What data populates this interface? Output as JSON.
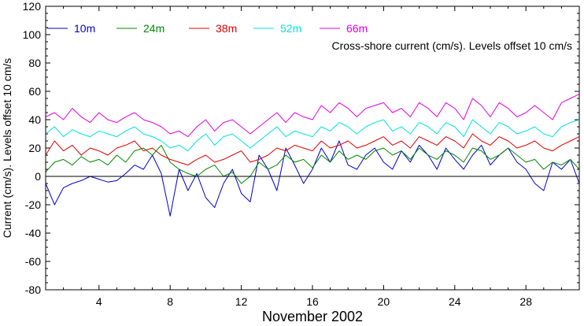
{
  "chart_data": {
    "type": "line",
    "xlabel": "November 2002",
    "ylabel": "Current (cm/s). Levels offset 10 cm/s",
    "annotation": "Cross-shore current (cm/s). Levels offset 10 cm/s",
    "xlim": [
      1,
      31
    ],
    "ylim": [
      -80,
      120
    ],
    "x_ticks": [
      4,
      8,
      12,
      16,
      20,
      24,
      28
    ],
    "y_ticks": [
      -80,
      -60,
      -40,
      -20,
      0,
      20,
      40,
      60,
      80,
      100,
      120
    ],
    "zero_line": true,
    "legend_position": "top",
    "series": [
      {
        "name": "10m",
        "color": "#0000cc",
        "x": [
          1,
          1.5,
          2,
          2.5,
          3,
          3.5,
          4,
          4.5,
          5,
          5.5,
          6,
          6.5,
          7,
          7.5,
          8,
          8.5,
          9,
          9.5,
          10,
          10.5,
          11,
          11.5,
          12,
          12.5,
          13,
          13.5,
          14,
          14.5,
          15,
          15.5,
          16,
          16.5,
          17,
          17.5,
          18,
          18.5,
          19,
          19.5,
          20,
          20.5,
          21,
          21.5,
          22,
          22.5,
          23,
          23.5,
          24,
          24.5,
          25,
          25.5,
          26,
          26.5,
          27,
          27.5,
          28,
          28.5,
          29,
          29.5,
          30,
          30.5,
          31
        ],
        "y": [
          -5,
          -20,
          -8,
          -5,
          -3,
          0,
          -2,
          -4,
          -3,
          2,
          8,
          5,
          15,
          2,
          -28,
          5,
          -10,
          2,
          -15,
          -22,
          -5,
          5,
          -12,
          -18,
          15,
          5,
          -10,
          20,
          8,
          -5,
          5,
          20,
          10,
          25,
          8,
          5,
          15,
          20,
          10,
          5,
          18,
          10,
          22,
          15,
          5,
          20,
          12,
          5,
          15,
          22,
          8,
          15,
          20,
          10,
          5,
          -5,
          -10,
          10,
          5,
          12,
          -5
        ]
      },
      {
        "name": "24m",
        "color": "#008800",
        "x": [
          1,
          1.5,
          2,
          2.5,
          3,
          3.5,
          4,
          4.5,
          5,
          5.5,
          6,
          6.5,
          7,
          7.5,
          8,
          8.5,
          9,
          9.5,
          10,
          10.5,
          11,
          11.5,
          12,
          12.5,
          13,
          13.5,
          14,
          14.5,
          15,
          15.5,
          16,
          16.5,
          17,
          17.5,
          18,
          18.5,
          19,
          19.5,
          20,
          20.5,
          21,
          21.5,
          22,
          22.5,
          23,
          23.5,
          24,
          24.5,
          25,
          25.5,
          26,
          26.5,
          27,
          27.5,
          28,
          28.5,
          29,
          29.5,
          30,
          30.5,
          31
        ],
        "y": [
          3,
          10,
          12,
          8,
          14,
          10,
          12,
          8,
          15,
          10,
          18,
          20,
          15,
          22,
          10,
          5,
          2,
          0,
          5,
          8,
          0,
          3,
          -5,
          0,
          10,
          5,
          8,
          15,
          10,
          12,
          6,
          15,
          10,
          18,
          12,
          15,
          12,
          18,
          20,
          15,
          18,
          12,
          20,
          15,
          12,
          18,
          15,
          10,
          20,
          18,
          12,
          15,
          20,
          15,
          10,
          12,
          5,
          10,
          8,
          12,
          5
        ]
      },
      {
        "name": "38m",
        "color": "#dd0000",
        "x": [
          1,
          1.5,
          2,
          2.5,
          3,
          3.5,
          4,
          4.5,
          5,
          5.5,
          6,
          6.5,
          7,
          7.5,
          8,
          8.5,
          9,
          9.5,
          10,
          10.5,
          11,
          11.5,
          12,
          12.5,
          13,
          13.5,
          14,
          14.5,
          15,
          15.5,
          16,
          16.5,
          17,
          17.5,
          18,
          18.5,
          19,
          19.5,
          20,
          20.5,
          21,
          21.5,
          22,
          22.5,
          23,
          23.5,
          24,
          24.5,
          25,
          25.5,
          26,
          26.5,
          27,
          27.5,
          28,
          28.5,
          29,
          29.5,
          30,
          30.5,
          31
        ],
        "y": [
          15,
          25,
          18,
          22,
          15,
          20,
          18,
          15,
          20,
          22,
          25,
          18,
          20,
          15,
          12,
          10,
          8,
          12,
          15,
          10,
          12,
          15,
          18,
          10,
          12,
          15,
          20,
          18,
          22,
          20,
          18,
          25,
          20,
          22,
          25,
          20,
          22,
          25,
          28,
          22,
          25,
          20,
          28,
          25,
          22,
          28,
          25,
          20,
          30,
          25,
          22,
          28,
          25,
          20,
          22,
          25,
          20,
          18,
          22,
          25,
          28
        ]
      },
      {
        "name": "52m",
        "color": "#00e0e0",
        "x": [
          1,
          1.5,
          2,
          2.5,
          3,
          3.5,
          4,
          4.5,
          5,
          5.5,
          6,
          6.5,
          7,
          7.5,
          8,
          8.5,
          9,
          9.5,
          10,
          10.5,
          11,
          11.5,
          12,
          12.5,
          13,
          13.5,
          14,
          14.5,
          15,
          15.5,
          16,
          16.5,
          17,
          17.5,
          18,
          18.5,
          19,
          19.5,
          20,
          20.5,
          21,
          21.5,
          22,
          22.5,
          23,
          23.5,
          24,
          24.5,
          25,
          25.5,
          26,
          26.5,
          27,
          27.5,
          28,
          28.5,
          29,
          29.5,
          30,
          30.5,
          31
        ],
        "y": [
          30,
          35,
          28,
          33,
          30,
          28,
          32,
          30,
          28,
          32,
          35,
          30,
          28,
          25,
          20,
          22,
          18,
          25,
          30,
          22,
          28,
          30,
          25,
          20,
          25,
          30,
          35,
          28,
          32,
          30,
          28,
          35,
          32,
          38,
          35,
          30,
          35,
          38,
          40,
          32,
          35,
          30,
          38,
          35,
          30,
          38,
          35,
          28,
          40,
          35,
          30,
          38,
          35,
          30,
          32,
          35,
          30,
          28,
          35,
          38,
          40
        ]
      },
      {
        "name": "66m",
        "color": "#e000e0",
        "x": [
          1,
          1.5,
          2,
          2.5,
          3,
          3.5,
          4,
          4.5,
          5,
          5.5,
          6,
          6.5,
          7,
          7.5,
          8,
          8.5,
          9,
          9.5,
          10,
          10.5,
          11,
          11.5,
          12,
          12.5,
          13,
          13.5,
          14,
          14.5,
          15,
          15.5,
          16,
          16.5,
          17,
          17.5,
          18,
          18.5,
          19,
          19.5,
          20,
          20.5,
          21,
          21.5,
          22,
          22.5,
          23,
          23.5,
          24,
          24.5,
          25,
          25.5,
          26,
          26.5,
          27,
          27.5,
          28,
          28.5,
          29,
          29.5,
          30,
          30.5,
          31
        ],
        "y": [
          42,
          45,
          40,
          48,
          42,
          38,
          45,
          40,
          38,
          42,
          45,
          40,
          38,
          35,
          30,
          32,
          28,
          35,
          40,
          32,
          38,
          40,
          35,
          30,
          35,
          40,
          45,
          38,
          45,
          42,
          40,
          50,
          45,
          52,
          48,
          42,
          48,
          50,
          52,
          45,
          48,
          42,
          52,
          48,
          42,
          52,
          48,
          40,
          55,
          50,
          42,
          52,
          48,
          42,
          45,
          50,
          45,
          40,
          52,
          55,
          58
        ]
      }
    ]
  }
}
